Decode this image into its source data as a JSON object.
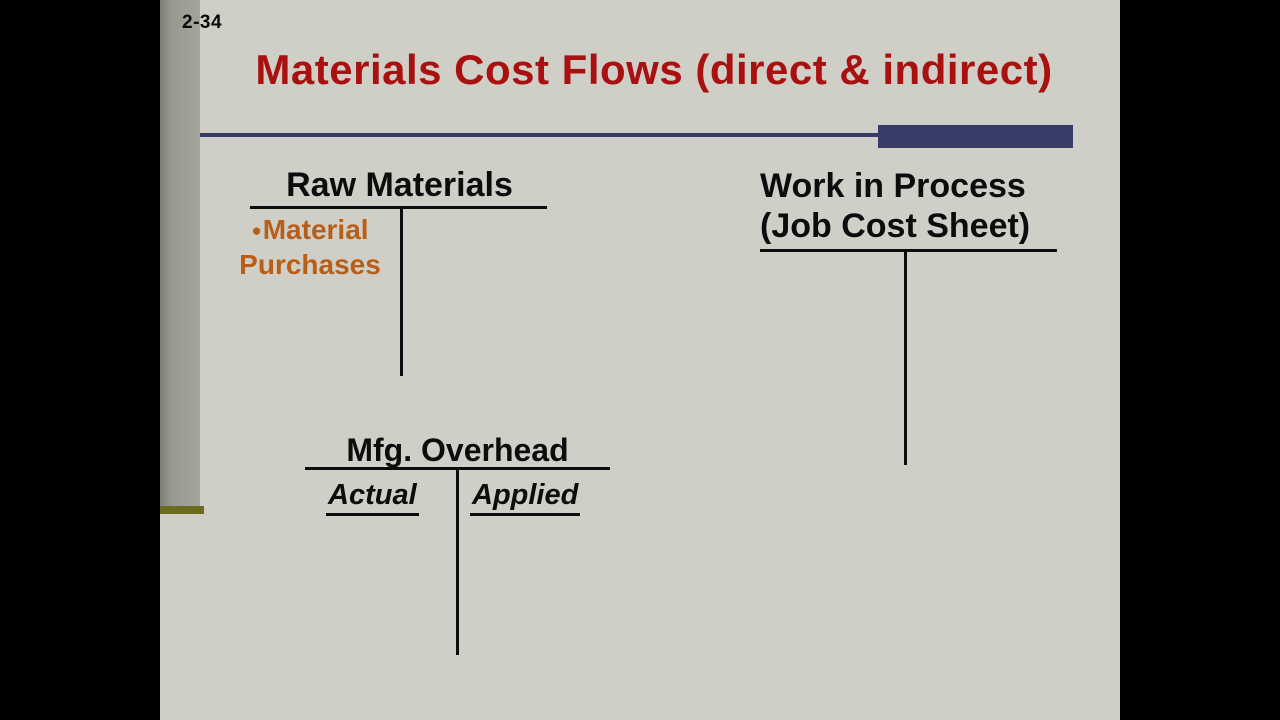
{
  "slide": {
    "page_number": "2-34",
    "title": "Materials Cost Flows (direct & indirect)",
    "accounts": {
      "raw_materials": {
        "label": "Raw Materials",
        "entry": {
          "bullet": "●",
          "line1": "Material",
          "line2": "Purchases"
        }
      },
      "work_in_process": {
        "label_line1": "Work in Process",
        "label_line2": "(Job Cost Sheet)"
      },
      "mfg_overhead": {
        "label": "Mfg. Overhead",
        "left_column": "Actual",
        "right_column": "Applied"
      }
    },
    "colors": {
      "background": "#cfcfc7",
      "letterbox": "#000000",
      "title_red": "#a91111",
      "accent_navy": "#373d68",
      "entry_orange": "#b95e17",
      "side_strip_gray": "#989a90",
      "strip_mark_olive": "#6b6b1f",
      "line_black": "#0c0c0c"
    }
  }
}
